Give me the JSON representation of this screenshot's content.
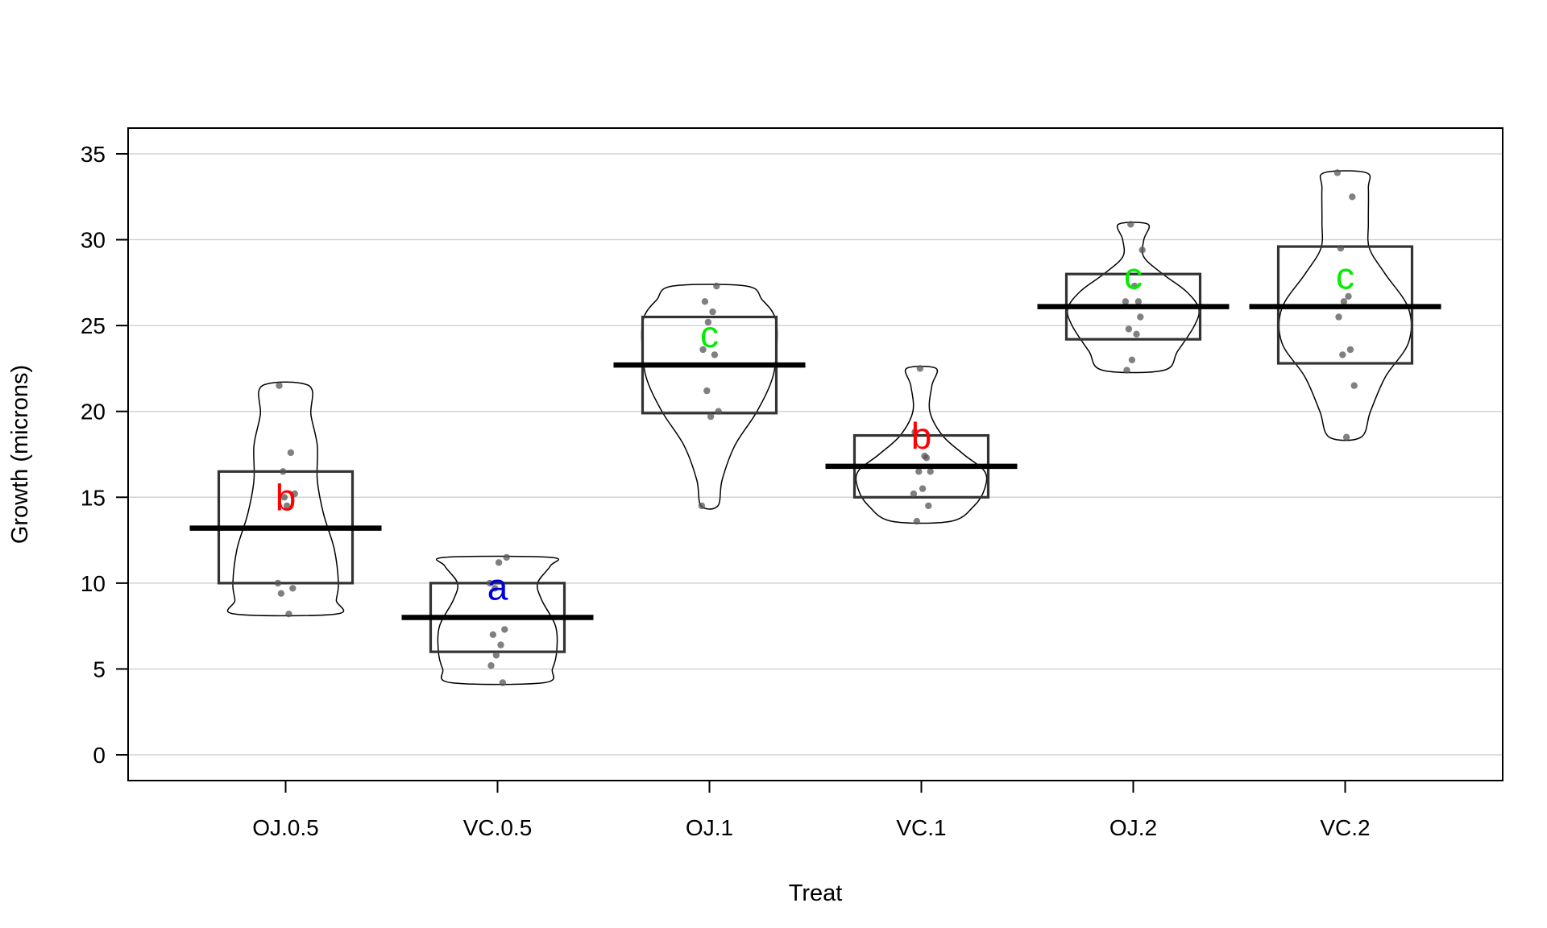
{
  "chart_data": {
    "type": "pirate",
    "title": "",
    "xlabel": "Treat",
    "ylabel": "Growth (microns)",
    "ylim": [
      -1.5,
      36.5
    ],
    "yticks": [
      0,
      5,
      10,
      15,
      20,
      25,
      30,
      35
    ],
    "ytick_labels": [
      "0",
      "5",
      "10",
      "15",
      "20",
      "25",
      "30",
      "35"
    ],
    "grid": true,
    "categories": [
      "OJ.0.5",
      "VC.0.5",
      "OJ.1",
      "VC.1",
      "OJ.2",
      "VC.2"
    ],
    "means": [
      13.2,
      8.0,
      22.7,
      16.8,
      26.1,
      26.1
    ],
    "box_low": [
      10.0,
      6.0,
      19.9,
      15.0,
      24.2,
      22.8
    ],
    "box_high": [
      16.5,
      10.0,
      25.5,
      18.6,
      28.0,
      29.6
    ],
    "group_letters": [
      "b",
      "a",
      "c",
      "b",
      "c",
      "c"
    ],
    "letter_colors": [
      "#ff0000",
      "#0000dd",
      "#00ee00",
      "#ff0000",
      "#00ee00",
      "#00ee00"
    ],
    "points": [
      [
        21.5,
        17.6,
        16.5,
        15.2,
        14.5,
        10.0,
        9.7,
        9.4,
        8.2,
        15.0
      ],
      [
        11.5,
        11.2,
        10.0,
        7.3,
        7.0,
        6.4,
        5.8,
        5.2,
        4.2,
        9.7
      ],
      [
        27.3,
        26.4,
        25.8,
        25.2,
        23.6,
        23.3,
        21.2,
        20.0,
        19.7,
        14.5
      ],
      [
        22.5,
        18.8,
        17.3,
        16.5,
        16.5,
        15.5,
        15.2,
        14.5,
        13.6,
        17.4
      ],
      [
        30.9,
        29.4,
        27.3,
        26.4,
        25.5,
        24.8,
        24.5,
        23.0,
        22.4,
        26.4
      ],
      [
        33.9,
        32.5,
        29.5,
        26.7,
        26.4,
        25.5,
        23.6,
        23.3,
        21.5,
        18.5
      ]
    ],
    "violins": [
      [
        [
          8.2,
          0.48
        ],
        [
          9.0,
          0.48
        ],
        [
          10.0,
          0.5
        ],
        [
          12.0,
          0.46
        ],
        [
          14.0,
          0.36
        ],
        [
          16.0,
          0.3
        ],
        [
          18.0,
          0.3
        ],
        [
          19.8,
          0.24
        ],
        [
          21.5,
          0.22
        ]
      ],
      [
        [
          4.2,
          0.44
        ],
        [
          5.0,
          0.52
        ],
        [
          6.0,
          0.56
        ],
        [
          7.5,
          0.55
        ],
        [
          9.0,
          0.42
        ],
        [
          10.0,
          0.38
        ],
        [
          11.0,
          0.5
        ],
        [
          11.5,
          0.5
        ]
      ],
      [
        [
          14.5,
          0.08
        ],
        [
          16.0,
          0.12
        ],
        [
          18.0,
          0.24
        ],
        [
          20.0,
          0.45
        ],
        [
          22.0,
          0.6
        ],
        [
          24.0,
          0.64
        ],
        [
          25.5,
          0.62
        ],
        [
          26.5,
          0.5
        ],
        [
          27.3,
          0.35
        ]
      ],
      [
        [
          13.6,
          0.28
        ],
        [
          14.5,
          0.5
        ],
        [
          15.5,
          0.6
        ],
        [
          16.5,
          0.6
        ],
        [
          17.5,
          0.4
        ],
        [
          18.6,
          0.2
        ],
        [
          20.0,
          0.08
        ],
        [
          21.5,
          0.1
        ],
        [
          22.5,
          0.14
        ]
      ],
      [
        [
          22.4,
          0.29
        ],
        [
          23.5,
          0.42
        ],
        [
          25.0,
          0.58
        ],
        [
          26.0,
          0.62
        ],
        [
          27.0,
          0.5
        ],
        [
          28.0,
          0.28
        ],
        [
          29.0,
          0.1
        ],
        [
          30.0,
          0.1
        ],
        [
          30.9,
          0.14
        ]
      ],
      [
        [
          18.5,
          0.15
        ],
        [
          20.0,
          0.24
        ],
        [
          22.0,
          0.38
        ],
        [
          24.0,
          0.6
        ],
        [
          26.0,
          0.6
        ],
        [
          28.0,
          0.38
        ],
        [
          29.5,
          0.23
        ],
        [
          31.0,
          0.22
        ],
        [
          33.0,
          0.22
        ],
        [
          33.9,
          0.2
        ]
      ]
    ]
  }
}
